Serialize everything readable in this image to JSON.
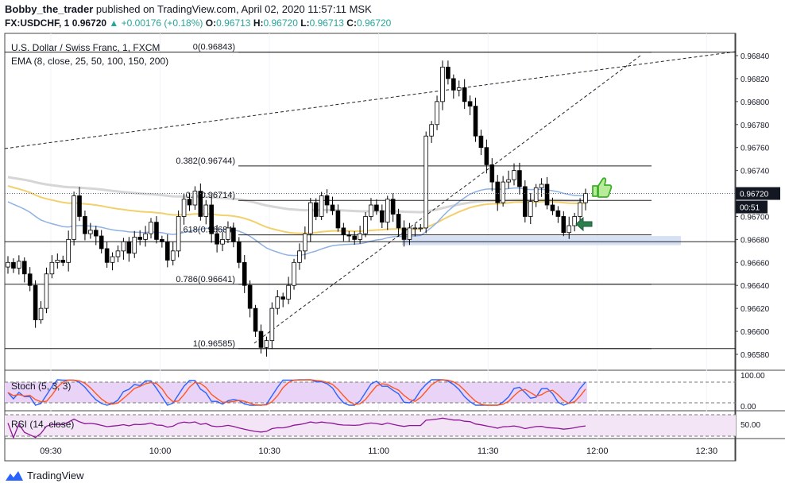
{
  "header": {
    "user": "Bobby_the_trader",
    "published": "published on TradingView.com, April 02, 2020 11:57:11 MSK",
    "symbol": "FX:USDCHF, 1",
    "last": "0.96720",
    "change": "+0.00176 (+0.18%)",
    "o_label": "O:",
    "o": "0.96713",
    "h_label": "H:",
    "h": "0.96720",
    "l_label": "L:",
    "l": "0.96713",
    "c_label": "C:",
    "c": "0.96720"
  },
  "legend": {
    "instrument": "U.S. Dollar / Swiss Franc, 1, FXCM",
    "ema": "EMA (8, close, 25, 50, 100, 150, 200)",
    "stoch": "Stoch (5, 3, 3)",
    "rsi": "RSI (14, close)"
  },
  "price_axis": {
    "ticks": [
      "0.96840",
      "0.96820",
      "0.96800",
      "0.96780",
      "0.96760",
      "0.96740",
      "0.96720",
      "0.96700",
      "0.96680",
      "0.96660",
      "0.96640",
      "0.96620",
      "0.96600",
      "0.96580"
    ],
    "last_price_label": "0.96720",
    "countdown": "00:51"
  },
  "stoch_axis": {
    "ticks": [
      "100.00",
      "0.00"
    ]
  },
  "rsi_axis": {
    "ticks": [
      "50.00"
    ]
  },
  "time_axis": {
    "ticks": [
      "09:30",
      "10:00",
      "10:30",
      "11:00",
      "11:30",
      "12:00",
      "12:30"
    ]
  },
  "footer": {
    "brand": "TradingView"
  },
  "colors": {
    "up": "#26a69a",
    "candle": "#000000",
    "ema_gray": "#d6d6d6",
    "ema_gold": "#f2d06b",
    "ema_blue": "#8fb1e3",
    "stoch_k": "#2962ff",
    "stoch_d": "#ff5722",
    "stoch_fill": "#e9d4f7",
    "rsi": "#8e1599",
    "rsi_fill": "#f3e5f5",
    "zone": "#cfdcf3",
    "thumb": "#76d15a",
    "arrow": "#2e7d4f",
    "price_label": "#131722"
  },
  "chart_data": {
    "type": "candlestick",
    "title": "U.S. Dollar / Swiss Franc, 1, FXCM",
    "x_ticks": [
      "09:30",
      "10:00",
      "10:30",
      "11:00",
      "11:30",
      "12:00",
      "12:30"
    ],
    "ylim": [
      0.9657,
      0.9686
    ],
    "fib_levels": [
      {
        "label": "0(0.96843)",
        "value": 0.96843
      },
      {
        "label": "0.382(0.96744)",
        "value": 0.96744
      },
      {
        "label": "0.5(0.96714)",
        "value": 0.96714
      },
      {
        "label": "0.618(0.96684)",
        "value": 0.96684
      },
      {
        "label": "0.786(0.96641)",
        "value": 0.96641
      },
      {
        "label": "1(0.96585)",
        "value": 0.96585
      }
    ],
    "extra_levels": [
      0.96678
    ],
    "support_zone": [
      0.96675,
      0.96683
    ],
    "last_price": 0.9672,
    "close_series": [
      0.9666,
      0.96655,
      0.96661,
      0.9665,
      0.9664,
      0.9661,
      0.9662,
      0.9665,
      0.9666,
      0.96662,
      0.9666,
      0.9668,
      0.96718,
      0.967,
      0.96685,
      0.96688,
      0.96683,
      0.96672,
      0.9666,
      0.96665,
      0.9667,
      0.96678,
      0.96668,
      0.96682,
      0.9668,
      0.96685,
      0.96695,
      0.9668,
      0.96678,
      0.96662,
      0.9667,
      0.967,
      0.96715,
      0.9671,
      0.96722,
      0.967,
      0.9671,
      0.96685,
      0.96676,
      0.9668,
      0.9669,
      0.96678,
      0.9666,
      0.9664,
      0.9662,
      0.966,
      0.96586,
      0.96592,
      0.9662,
      0.9663,
      0.96628,
      0.9664,
      0.9666,
      0.9667,
      0.96685,
      0.96712,
      0.967,
      0.96718,
      0.9671,
      0.96705,
      0.9669,
      0.96684,
      0.96683,
      0.9668,
      0.96685,
      0.967,
      0.9671,
      0.96705,
      0.96695,
      0.96715,
      0.96702,
      0.9669,
      0.9668,
      0.9669,
      0.9669,
      0.9669,
      0.9677,
      0.9678,
      0.968,
      0.9683,
      0.9682,
      0.9681,
      0.96812,
      0.968,
      0.96796,
      0.9677,
      0.9676,
      0.96745,
      0.9673,
      0.96712,
      0.9673,
      0.96732,
      0.9674,
      0.96726,
      0.967,
      0.96713,
      0.96725,
      0.96728,
      0.9671,
      0.96705,
      0.967,
      0.96686,
      0.96692,
      0.967,
      0.96712,
      0.9672
    ],
    "stoch_range": [
      0,
      100
    ],
    "rsi_range": [
      20,
      80
    ]
  }
}
